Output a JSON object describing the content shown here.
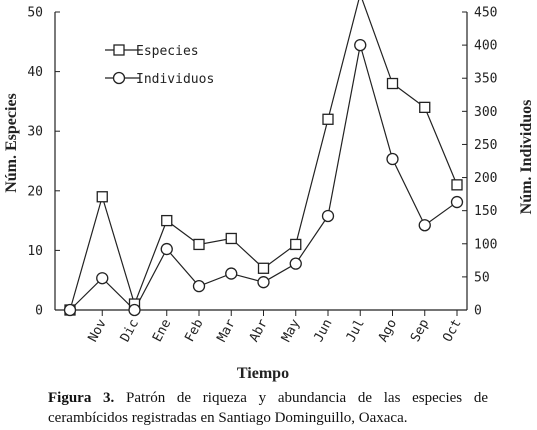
{
  "chart_data": {
    "type": "line",
    "categories": [
      "",
      "Nov",
      "Dic",
      "Ene",
      "Feb",
      "Mar",
      "Abr",
      "May",
      "Jun",
      "Jul",
      "Ago",
      "Sep",
      "Oct"
    ],
    "xlabel": "Tiempo",
    "ylabel_left": "Núm. Especies",
    "ylabel_right": "Núm. Individuos",
    "ylim_left": [
      0,
      50
    ],
    "ylim_right": [
      0,
      450
    ],
    "yticks_left": [
      "0",
      "10",
      "20",
      "30",
      "40",
      "50"
    ],
    "yticks_right": [
      "0",
      "50",
      "100",
      "150",
      "200",
      "250",
      "300",
      "350",
      "400",
      "450"
    ],
    "series": [
      {
        "name": "Especies",
        "axis": "left",
        "marker": "square",
        "values": [
          0,
          19,
          1,
          15,
          11,
          12,
          7,
          11,
          32,
          53,
          38,
          34,
          21
        ]
      },
      {
        "name": "Individuos",
        "axis": "right",
        "marker": "circle",
        "values": [
          0,
          48,
          0,
          92,
          36,
          55,
          42,
          70,
          142,
          400,
          228,
          128,
          163
        ]
      }
    ],
    "legend_position": "top-left"
  },
  "caption": {
    "label": "Figura 3.",
    "text": " Patrón de riqueza y abundancia de las especies de cerambícidos registradas en Santiago Dominguillo, Oaxaca."
  },
  "colors": {
    "line": "#222222",
    "axis": "#222222",
    "marker_fill": "#ffffff"
  }
}
